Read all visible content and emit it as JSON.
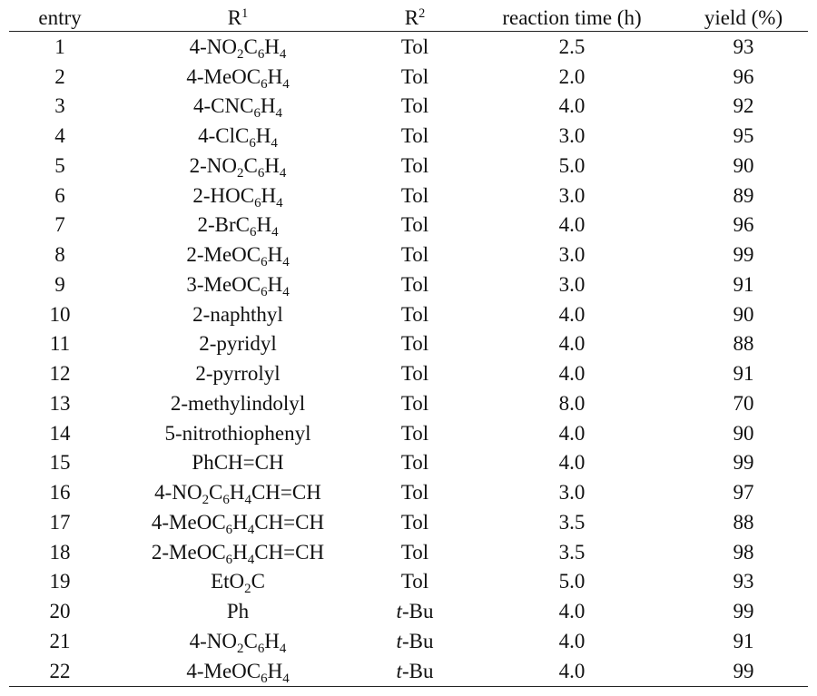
{
  "table": {
    "headers": {
      "entry": "entry",
      "r1_base": "R",
      "r1_sup": "1",
      "r2_base": "R",
      "r2_sup": "2",
      "time": "reaction time (h)",
      "yield": "yield (%)"
    },
    "rows": [
      {
        "entry": "1",
        "r1": [
          [
            "4-NO",
            ""
          ],
          [
            "2",
            "sub"
          ],
          [
            "C",
            ""
          ],
          [
            "6",
            "sub"
          ],
          [
            "H",
            ""
          ],
          [
            "4",
            "sub"
          ]
        ],
        "r2": [
          [
            "Tol",
            ""
          ]
        ],
        "time": "2.5",
        "yield": "93"
      },
      {
        "entry": "2",
        "r1": [
          [
            "4-MeOC",
            ""
          ],
          [
            "6",
            "sub"
          ],
          [
            "H",
            ""
          ],
          [
            "4",
            "sub"
          ]
        ],
        "r2": [
          [
            "Tol",
            ""
          ]
        ],
        "time": "2.0",
        "yield": "96"
      },
      {
        "entry": "3",
        "r1": [
          [
            "4-CNC",
            ""
          ],
          [
            "6",
            "sub"
          ],
          [
            "H",
            ""
          ],
          [
            "4",
            "sub"
          ]
        ],
        "r2": [
          [
            "Tol",
            ""
          ]
        ],
        "time": "4.0",
        "yield": "92"
      },
      {
        "entry": "4",
        "r1": [
          [
            "4-ClC",
            ""
          ],
          [
            "6",
            "sub"
          ],
          [
            "H",
            ""
          ],
          [
            "4",
            "sub"
          ]
        ],
        "r2": [
          [
            "Tol",
            ""
          ]
        ],
        "time": "3.0",
        "yield": "95"
      },
      {
        "entry": "5",
        "r1": [
          [
            "2-NO",
            ""
          ],
          [
            "2",
            "sub"
          ],
          [
            "C",
            ""
          ],
          [
            "6",
            "sub"
          ],
          [
            "H",
            ""
          ],
          [
            "4",
            "sub"
          ]
        ],
        "r2": [
          [
            "Tol",
            ""
          ]
        ],
        "time": "5.0",
        "yield": "90"
      },
      {
        "entry": "6",
        "r1": [
          [
            "2-HOC",
            ""
          ],
          [
            "6",
            "sub"
          ],
          [
            "H",
            ""
          ],
          [
            "4",
            "sub"
          ]
        ],
        "r2": [
          [
            "Tol",
            ""
          ]
        ],
        "time": "3.0",
        "yield": "89"
      },
      {
        "entry": "7",
        "r1": [
          [
            "2-BrC",
            ""
          ],
          [
            "6",
            "sub"
          ],
          [
            "H",
            ""
          ],
          [
            "4",
            "sub"
          ]
        ],
        "r2": [
          [
            "Tol",
            ""
          ]
        ],
        "time": "4.0",
        "yield": "96"
      },
      {
        "entry": "8",
        "r1": [
          [
            "2-MeOC",
            ""
          ],
          [
            "6",
            "sub"
          ],
          [
            "H",
            ""
          ],
          [
            "4",
            "sub"
          ]
        ],
        "r2": [
          [
            "Tol",
            ""
          ]
        ],
        "time": "3.0",
        "yield": "99"
      },
      {
        "entry": "9",
        "r1": [
          [
            "3-MeOC",
            ""
          ],
          [
            "6",
            "sub"
          ],
          [
            "H",
            ""
          ],
          [
            "4",
            "sub"
          ]
        ],
        "r2": [
          [
            "Tol",
            ""
          ]
        ],
        "time": "3.0",
        "yield": "91"
      },
      {
        "entry": "10",
        "r1": [
          [
            "2-naphthyl",
            ""
          ]
        ],
        "r2": [
          [
            "Tol",
            ""
          ]
        ],
        "time": "4.0",
        "yield": "90"
      },
      {
        "entry": "11",
        "r1": [
          [
            "2-pyridyl",
            ""
          ]
        ],
        "r2": [
          [
            "Tol",
            ""
          ]
        ],
        "time": "4.0",
        "yield": "88"
      },
      {
        "entry": "12",
        "r1": [
          [
            "2-pyrrolyl",
            ""
          ]
        ],
        "r2": [
          [
            "Tol",
            ""
          ]
        ],
        "time": "4.0",
        "yield": "91"
      },
      {
        "entry": "13",
        "r1": [
          [
            "2-methylindolyl",
            ""
          ]
        ],
        "r2": [
          [
            "Tol",
            ""
          ]
        ],
        "time": "8.0",
        "yield": "70"
      },
      {
        "entry": "14",
        "r1": [
          [
            "5-nitrothiophenyl",
            ""
          ]
        ],
        "r2": [
          [
            "Tol",
            ""
          ]
        ],
        "time": "4.0",
        "yield": "90"
      },
      {
        "entry": "15",
        "r1": [
          [
            "PhCH=CH",
            ""
          ]
        ],
        "r2": [
          [
            "Tol",
            ""
          ]
        ],
        "time": "4.0",
        "yield": "99"
      },
      {
        "entry": "16",
        "r1": [
          [
            "4-NO",
            ""
          ],
          [
            "2",
            "sub"
          ],
          [
            "C",
            ""
          ],
          [
            "6",
            "sub"
          ],
          [
            "H",
            ""
          ],
          [
            "4",
            "sub"
          ],
          [
            "CH=CH",
            ""
          ]
        ],
        "r2": [
          [
            "Tol",
            ""
          ]
        ],
        "time": "3.0",
        "yield": "97"
      },
      {
        "entry": "17",
        "r1": [
          [
            "4-MeOC",
            ""
          ],
          [
            "6",
            "sub"
          ],
          [
            "H",
            ""
          ],
          [
            "4",
            "sub"
          ],
          [
            "CH=CH",
            ""
          ]
        ],
        "r2": [
          [
            "Tol",
            ""
          ]
        ],
        "time": "3.5",
        "yield": "88"
      },
      {
        "entry": "18",
        "r1": [
          [
            "2-MeOC",
            ""
          ],
          [
            "6",
            "sub"
          ],
          [
            "H",
            ""
          ],
          [
            "4",
            "sub"
          ],
          [
            "CH=CH",
            ""
          ]
        ],
        "r2": [
          [
            "Tol",
            ""
          ]
        ],
        "time": "3.5",
        "yield": "98"
      },
      {
        "entry": "19",
        "r1": [
          [
            "EtO",
            ""
          ],
          [
            "2",
            "sub"
          ],
          [
            "C",
            ""
          ]
        ],
        "r2": [
          [
            "Tol",
            ""
          ]
        ],
        "time": "5.0",
        "yield": "93"
      },
      {
        "entry": "20",
        "r1": [
          [
            "Ph",
            ""
          ]
        ],
        "r2": [
          [
            "t",
            "ital"
          ],
          [
            "-Bu",
            ""
          ]
        ],
        "time": "4.0",
        "yield": "99"
      },
      {
        "entry": "21",
        "r1": [
          [
            "4-NO",
            ""
          ],
          [
            "2",
            "sub"
          ],
          [
            "C",
            ""
          ],
          [
            "6",
            "sub"
          ],
          [
            "H",
            ""
          ],
          [
            "4",
            "sub"
          ]
        ],
        "r2": [
          [
            "t",
            "ital"
          ],
          [
            "-Bu",
            ""
          ]
        ],
        "time": "4.0",
        "yield": "91"
      },
      {
        "entry": "22",
        "r1": [
          [
            "4-MeOC",
            ""
          ],
          [
            "6",
            "sub"
          ],
          [
            "H",
            ""
          ],
          [
            "4",
            "sub"
          ]
        ],
        "r2": [
          [
            "t",
            "ital"
          ],
          [
            "-Bu",
            ""
          ]
        ],
        "time": "4.0",
        "yield": "99"
      }
    ]
  }
}
